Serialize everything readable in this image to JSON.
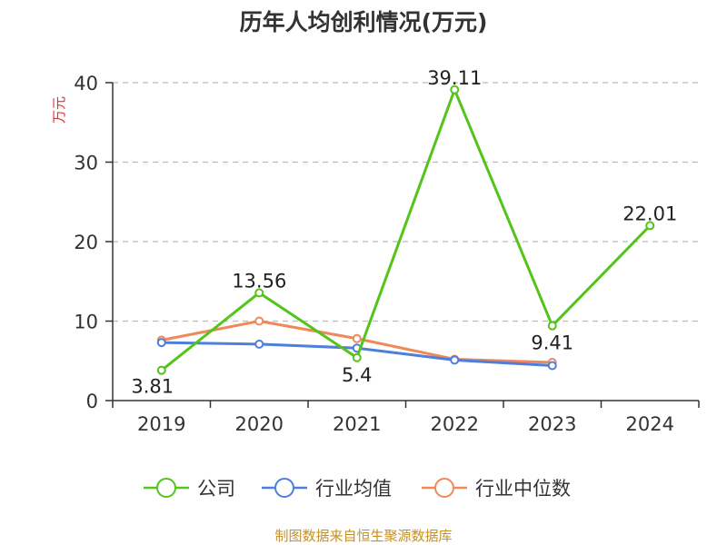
{
  "chart_data": {
    "type": "line",
    "title": "历年人均创利情况(万元)",
    "ylabel": "万元",
    "xlabel": "",
    "categories": [
      "2019",
      "2020",
      "2021",
      "2022",
      "2023",
      "2024"
    ],
    "ylim": [
      0,
      40
    ],
    "yticks": [
      0,
      10,
      20,
      30,
      40
    ],
    "grid": true,
    "legend_position": "bottom",
    "series": [
      {
        "name": "公司",
        "color": "#52c41a",
        "values": [
          3.81,
          13.56,
          5.4,
          39.11,
          9.41,
          22.01
        ],
        "labels": [
          "3.81",
          "13.56",
          "5.4",
          "39.11",
          "9.41",
          "22.01"
        ]
      },
      {
        "name": "行业均值",
        "color": "#4e7fdb",
        "values": [
          7.3,
          7.1,
          6.6,
          5.1,
          4.4,
          null
        ]
      },
      {
        "name": "行业中位数",
        "color": "#f0885a",
        "values": [
          7.6,
          10.0,
          7.8,
          5.2,
          4.8,
          null
        ]
      }
    ]
  },
  "colors": {
    "ylabel": "#e03030",
    "source": "#c89020",
    "axis": "#333333",
    "grid": "#bbbbbb"
  },
  "source_text": "制图数据来自恒生聚源数据库"
}
